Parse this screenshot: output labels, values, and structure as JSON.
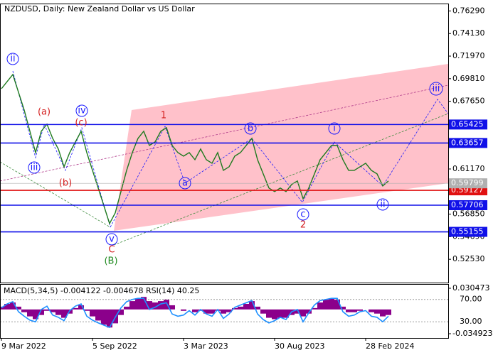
{
  "chart_data": [
    {
      "type": "line",
      "title": "NZDUSD, Daily:  New Zealand Dollar vs US Dollar",
      "color": "#1e7a1e",
      "values": [
        0.6885,
        0.6953,
        0.7021,
        0.6851,
        0.6681,
        0.6478,
        0.6274,
        0.6478,
        0.6546,
        0.641,
        0.6308,
        0.6138,
        0.6274,
        0.6376,
        0.6478,
        0.6274,
        0.6104,
        0.5935,
        0.5765,
        0.5595,
        0.5697,
        0.5901,
        0.6104,
        0.6274,
        0.641,
        0.6478,
        0.6342,
        0.6376,
        0.6478,
        0.6512,
        0.6342,
        0.6274,
        0.624,
        0.6274,
        0.6206,
        0.6308,
        0.6206,
        0.6172,
        0.6274,
        0.6104,
        0.6138,
        0.624,
        0.6274,
        0.6342,
        0.641,
        0.6206,
        0.607,
        0.5935,
        0.5901,
        0.5935,
        0.5901,
        0.5969,
        0.6002,
        0.5833,
        0.5935,
        0.607,
        0.6206,
        0.6274,
        0.6342,
        0.6342,
        0.6206,
        0.6104,
        0.6104,
        0.6138,
        0.6172,
        0.6104,
        0.607,
        0.5955,
        0.6002
      ],
      "ylim": [
        0.503,
        0.77
      ],
      "yticks": [
        {
          "value": 0.7629,
          "label": "0.76290"
        },
        {
          "value": 0.7413,
          "label": "0.74130"
        },
        {
          "value": 0.7197,
          "label": "0.71970"
        },
        {
          "value": 0.6981,
          "label": "0.69810"
        },
        {
          "value": 0.6765,
          "label": "0.67650"
        },
        {
          "value": 0.6117,
          "label": "0.61170"
        },
        {
          "value": 0.5685,
          "label": "0.56850"
        },
        {
          "value": 0.5469,
          "label": "0.54690"
        },
        {
          "value": 0.5253,
          "label": "0.52530"
        }
      ],
      "xticks": [
        {
          "value": 0,
          "label": "9 Mar 2022"
        },
        {
          "value": 16,
          "label": "5 Sep 2022"
        },
        {
          "value": 32,
          "label": "3 Mar 2023"
        },
        {
          "value": 48,
          "label": "30 Aug 2023"
        },
        {
          "value": 64,
          "label": "28 Feb 2024"
        }
      ],
      "levels": [
        {
          "value": 0.65425,
          "color": "#1010e8"
        },
        {
          "value": 0.63657,
          "color": "#1010e8"
        },
        {
          "value": 0.59127,
          "color": "#e01010"
        },
        {
          "value": 0.57706,
          "color": "#1010e8"
        },
        {
          "value": 0.55155,
          "color": "#1010e8"
        }
      ],
      "last_price": {
        "value": 0.59799,
        "color": "#b0b0b0"
      }
    },
    {
      "type": "macd",
      "title": "MACD(5,34,5) -0.004122 -0.004678 RSI(14) 40.25",
      "color": "#8b008b",
      "values": [
        0.004,
        0.008,
        0.01,
        0.004,
        -0.004,
        -0.01,
        -0.014,
        -0.008,
        -0.002,
        -0.004,
        -0.008,
        -0.012,
        -0.006,
        0.002,
        0.006,
        -0.002,
        -0.01,
        -0.016,
        -0.022,
        -0.026,
        -0.02,
        -0.008,
        0.004,
        0.012,
        0.016,
        0.018,
        0.012,
        0.01,
        0.012,
        0.014,
        0.006,
        0.0,
        -0.002,
        0.0,
        -0.004,
        -0.002,
        -0.006,
        -0.006,
        -0.002,
        -0.006,
        -0.004,
        0.002,
        0.004,
        0.008,
        0.012,
        0.004,
        -0.006,
        -0.012,
        -0.014,
        -0.012,
        -0.012,
        -0.008,
        -0.006,
        -0.01,
        -0.006,
        0.002,
        0.01,
        0.014,
        0.016,
        0.014,
        0.004,
        -0.004,
        -0.004,
        -0.002,
        0.0,
        -0.004,
        -0.006,
        -0.01,
        -0.008
      ],
      "rsi_color": "#1e90ff",
      "rsi_values": [
        55,
        62,
        66,
        48,
        40,
        33,
        30,
        52,
        58,
        42,
        38,
        32,
        50,
        58,
        62,
        40,
        33,
        28,
        24,
        20,
        38,
        55,
        66,
        70,
        72,
        72,
        52,
        56,
        62,
        64,
        44,
        40,
        42,
        50,
        42,
        52,
        44,
        40,
        52,
        36,
        44,
        56,
        60,
        64,
        68,
        44,
        34,
        28,
        32,
        38,
        34,
        48,
        52,
        30,
        46,
        60,
        68,
        70,
        72,
        72,
        48,
        40,
        42,
        48,
        50,
        40,
        38,
        30,
        40
      ],
      "ylim": [
        -0.034923,
        0.030473
      ],
      "yticks": [
        0.030473,
        -0.034923
      ],
      "y2lim": [
        8.7,
        90
      ],
      "y2ticks": [
        {
          "value": 70,
          "label": "70.00"
        },
        {
          "value": 30,
          "label": "30.00"
        }
      ]
    }
  ],
  "wave_labels": [
    "ii",
    "iii",
    "(a)",
    "(b)",
    "(c)",
    "iv",
    "v",
    "C",
    "(B)",
    "1",
    "a",
    "b",
    "c",
    "2",
    "i",
    "ii",
    "iii"
  ]
}
